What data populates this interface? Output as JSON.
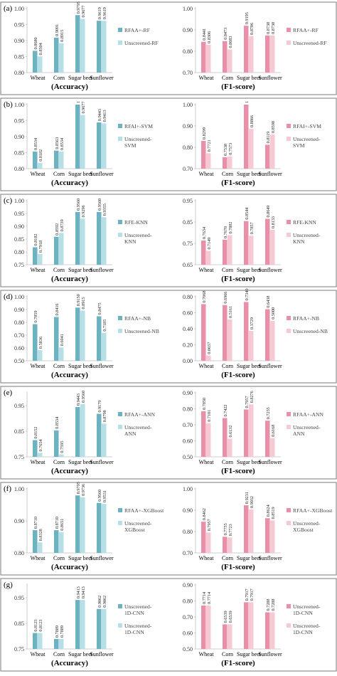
{
  "panels": [
    {
      "label": "(a)"
    },
    {
      "label": "(b)"
    },
    {
      "label": "(c)"
    },
    {
      "label": "(d)"
    },
    {
      "label": "(e)"
    },
    {
      "label": "(f)"
    },
    {
      "label": "(g)"
    }
  ],
  "colors": {
    "accuracy_model": "#6cb2c1",
    "accuracy_baseline": "#b6dfe6",
    "f1_model": "#e98fa8",
    "f1_baseline": "#f7c9d5",
    "panel_border": "#7a7a7a",
    "axis": "#bfbfbf"
  },
  "chart_data": [
    {
      "panel": "(a)",
      "metric": "accuracy",
      "type": "bar",
      "xlabel": "(Accuracy)",
      "ylim": [
        0.8,
        1.0
      ],
      "yticks": [
        "0.80",
        "0.85",
        "0.90",
        "0.95",
        "1.00"
      ],
      "categories": [
        "Wheat",
        "Corn",
        "Sugar beet",
        "Sunflower"
      ],
      "series": [
        {
          "name": "RFAA+-RF",
          "values": [
            0.868,
            0.9091,
            0.9795,
            0.9619
          ]
        },
        {
          "name": "Unscreened-RF",
          "values": [
            0.8504,
            0.8915,
            0.9677,
            0.9619
          ]
        }
      ]
    },
    {
      "panel": "(a)",
      "metric": "f1",
      "type": "bar",
      "xlabel": "(F1-score)",
      "ylim": [
        0.7,
        1.0
      ],
      "yticks": [
        "0.70",
        "0.80",
        "0.90",
        "1.00"
      ],
      "categories": [
        "Wheat",
        "Corn",
        "Sugar beet",
        "Sunflower"
      ],
      "series": [
        {
          "name": "RFAA+-RF",
          "values": [
            0.8441,
            0.8473,
            0.9195,
            0.8738
          ]
        },
        {
          "name": "Unscreened-RF",
          "values": [
            0.8306,
            0.8083,
            0.8706,
            0.8738
          ]
        }
      ]
    },
    {
      "panel": "(b)",
      "metric": "accuracy",
      "type": "bar",
      "xlabel": "(Accuracy)",
      "ylim": [
        0.8,
        1.0
      ],
      "yticks": [
        "0.80",
        "0.85",
        "0.90",
        "0.95",
        "1.00"
      ],
      "categories": [
        "Wheat",
        "Corn",
        "Sugar beet",
        "Sunflower"
      ],
      "series": [
        {
          "name": "RFAI+-SVM",
          "values": [
            0.8534,
            0.8563,
            1.0,
            0.9443
          ]
        },
        {
          "name": "Unscreened-SVM",
          "values": [
            0.8182,
            0.8534,
            0.9677,
            0.9413
          ]
        }
      ]
    },
    {
      "panel": "(b)",
      "metric": "f1",
      "type": "bar",
      "xlabel": "(F1-score)",
      "ylim": [
        0.7,
        1.0
      ],
      "yticks": [
        "0.70",
        "0.80",
        "0.90",
        "1.00"
      ],
      "categories": [
        "Wheat",
        "Corn",
        "Sugar beet",
        "Sunflower"
      ],
      "series": [
        {
          "name": "RFAI+-SVM",
          "values": [
            0.8299,
            0.7538,
            1.0,
            0.8119
          ]
        },
        {
          "name": "Unscreened-SVM",
          "values": [
            0.7721,
            0.7573,
            0.8866,
            0.8598
          ]
        }
      ]
    },
    {
      "panel": "(c)",
      "metric": "accuracy",
      "type": "bar",
      "xlabel": "(Accuracy)",
      "ylim": [
        0.75,
        1.0
      ],
      "yticks": [
        "0.75",
        "0.80",
        "0.85",
        "0.90",
        "0.95",
        "1.00"
      ],
      "categories": [
        "Wheat",
        "Corn",
        "Sugar beet",
        "Sunflower"
      ],
      "series": [
        {
          "name": "RFE-KNN",
          "values": [
            0.8182,
            0.8592,
            0.956,
            0.956
          ]
        },
        {
          "name": "Unscreened-KNN",
          "values": [
            0.7918,
            0.8739,
            0.9296,
            0.9355
          ]
        }
      ]
    },
    {
      "panel": "(c)",
      "metric": "f1",
      "type": "bar",
      "xlabel": "(F1-score)",
      "ylim": [
        0.65,
        0.95
      ],
      "yticks": [
        "0.65",
        "0.75",
        "0.85",
        "0.95"
      ],
      "categories": [
        "Wheat",
        "Corn",
        "Sugar beet",
        "Sunflower"
      ],
      "series": [
        {
          "name": "RFE-KNN",
          "values": [
            0.7634,
            0.767,
            0.8544,
            0.8649
          ]
        },
        {
          "name": "Unscreened-KNN",
          "values": [
            0.7149,
            0.7882,
            0.7857,
            0.8133
          ]
        }
      ]
    },
    {
      "panel": "(d)",
      "metric": "accuracy",
      "type": "bar",
      "xlabel": "(Accuracy)",
      "ylim": [
        0.5,
        1.0
      ],
      "yticks": [
        "0.50",
        "0.60",
        "0.70",
        "0.80",
        "0.90",
        "1.00"
      ],
      "categories": [
        "Wheat",
        "Corn",
        "Sugar beet",
        "Sunflower"
      ],
      "series": [
        {
          "name": "RFAA+-NB",
          "values": [
            0.7859,
            0.8416,
            0.915,
            0.8475
          ]
        },
        {
          "name": "Unscreened-NB",
          "values": [
            0.5836,
            0.6041,
            0.8915,
            0.7185
          ]
        }
      ]
    },
    {
      "panel": "(d)",
      "metric": "f1",
      "type": "bar",
      "xlabel": "(F1-score)",
      "ylim": [
        0.0,
        0.8
      ],
      "yticks": [
        "0.00",
        "0.20",
        "0.40",
        "0.60",
        "0.80"
      ],
      "categories": [
        "Wheat",
        "Corn",
        "Sugar beet",
        "Sunflower"
      ],
      "series": [
        {
          "name": "RFAA+-NB",
          "values": [
            0.7068,
            0.6966,
            0.734,
            0.6438
          ]
        },
        {
          "name": "Unscreened-NB",
          "values": [
            0.0657,
            0.5161,
            0.3729,
            0.5
          ]
        }
      ]
    },
    {
      "panel": "(e)",
      "metric": "accuracy",
      "type": "bar",
      "xlabel": "(Accuracy)",
      "ylim": [
        0.75,
        1.0
      ],
      "yticks": [
        "0.75",
        "0.85",
        "0.95"
      ],
      "categories": [
        "Wheat",
        "Corn",
        "Sugar beet",
        "Sunflower"
      ],
      "series": [
        {
          "name": "RFAA+-ANN",
          "values": [
            0.8152,
            0.8534,
            0.9443,
            0.9179
          ]
        },
        {
          "name": "Unscreened-ANN",
          "values": [
            0.7654,
            0.7595,
            0.956,
            0.8798
          ]
        }
      ]
    },
    {
      "panel": "(e)",
      "metric": "f1",
      "type": "bar",
      "xlabel": "(F1-score)",
      "ylim": [
        0.5,
        0.9
      ],
      "yticks": [
        "0.50",
        "0.60",
        "0.70",
        "0.80",
        "0.90"
      ],
      "categories": [
        "Wheat",
        "Corn",
        "Sugar beet",
        "Sunflower"
      ],
      "series": [
        {
          "name": "RFAA+-ANN",
          "values": [
            0.785,
            0.7422,
            0.7957,
            0.7255
          ]
        },
        {
          "name": "Unscreened-ANN",
          "values": [
            0.7101,
            0.6132,
            0.8276,
            0.6168
          ]
        }
      ]
    },
    {
      "panel": "(f)",
      "metric": "accuracy",
      "type": "bar",
      "xlabel": "(Accuracy)",
      "ylim": [
        0.8,
        1.0
      ],
      "yticks": [
        "0.80",
        "0.90",
        "1.00"
      ],
      "categories": [
        "Wheat",
        "Corn",
        "Sugar beet",
        "Sunflower"
      ],
      "series": [
        {
          "name": "RFAA+-XGBoost",
          "values": [
            0.871,
            0.871,
            0.9795,
            0.956
          ]
        },
        {
          "name": "Unscreened-XGBoost",
          "values": [
            0.8328,
            0.8651,
            0.9736,
            0.9531
          ]
        }
      ]
    },
    {
      "panel": "(f)",
      "metric": "f1",
      "type": "bar",
      "xlabel": "(F1-score)",
      "ylim": [
        0.7,
        1.0
      ],
      "yticks": [
        "0.70",
        "0.80",
        "0.90",
        "1.00"
      ],
      "categories": [
        "Wheat",
        "Corn",
        "Sugar beet",
        "Sunflower"
      ],
      "series": [
        {
          "name": "RFAA+-XGBoost",
          "values": [
            0.8462,
            0.7755,
            0.9231,
            0.8624
          ]
        },
        {
          "name": "Unscreened-XGBoost",
          "values": [
            0.7957,
            0.7723,
            0.9032,
            0.8519
          ]
        }
      ]
    },
    {
      "panel": "(g)",
      "metric": "accuracy",
      "type": "bar",
      "xlabel": "(Accuracy)",
      "ylim": [
        0.75,
        1.0
      ],
      "yticks": [
        "0.75",
        "0.85",
        "0.95"
      ],
      "categories": [
        "Wheat",
        "Corn",
        "Sugar beet",
        "Sunflower"
      ],
      "series": [
        {
          "name": "Unscreened-1D-CNN",
          "values": [
            0.8123,
            0.7889,
            0.9413,
            0.9062
          ]
        },
        {
          "name": "Unscreened-1D-CNN",
          "values": [
            0.8123,
            0.7889,
            0.9413,
            0.9062
          ]
        }
      ]
    },
    {
      "panel": "(g)",
      "metric": "f1",
      "type": "bar",
      "xlabel": "(F1-score)",
      "ylim": [
        0.5,
        0.9
      ],
      "yticks": [
        "0.50",
        "0.60",
        "0.70",
        "0.80",
        "0.90"
      ],
      "categories": [
        "Wheat",
        "Corn",
        "Sugar beet",
        "Sunflower"
      ],
      "series": [
        {
          "name": "Unscreened-1D-CNN",
          "values": [
            0.7714,
            0.6539,
            0.7917,
            0.7288
          ]
        },
        {
          "name": "Unscreened-1D-CNN",
          "values": [
            0.7714,
            0.6539,
            0.7917,
            0.7288
          ]
        }
      ]
    }
  ]
}
